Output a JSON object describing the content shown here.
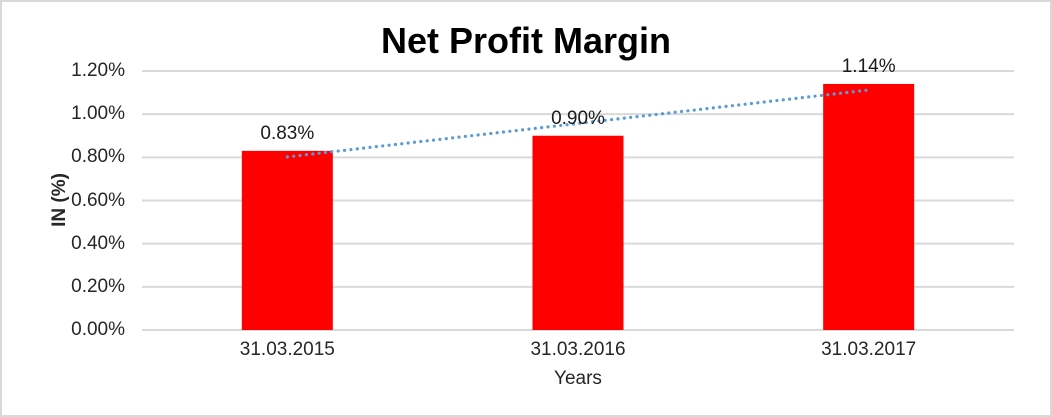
{
  "chart_data": {
    "type": "bar",
    "title": "Net Profit Margin",
    "xlabel": "Years",
    "ylabel": "IN (%)",
    "categories": [
      "31.03.2015",
      "31.03.2016",
      "31.03.2017"
    ],
    "values": [
      0.83,
      0.9,
      1.14
    ],
    "value_labels": [
      "0.83%",
      "0.90%",
      "1.14%"
    ],
    "ylim": [
      0,
      1.2
    ],
    "ytick_step": 0.2,
    "ytick_labels": [
      "0.00%",
      "0.20%",
      "0.40%",
      "0.60%",
      "0.80%",
      "1.00%",
      "1.20%"
    ],
    "grid": true,
    "legend": "none",
    "trendline": {
      "type": "linear",
      "style": "dotted",
      "start": {
        "category_index": 0,
        "value": 0.802
      },
      "end": {
        "category_index": 2,
        "value": 1.112
      }
    }
  },
  "colors": {
    "bar": "#ff0000",
    "trendline": "#5b9bd5",
    "gridline": "#d9d9d9",
    "frame_border": "#d9d9d9",
    "text": "#262626",
    "title_text": "#000000"
  }
}
